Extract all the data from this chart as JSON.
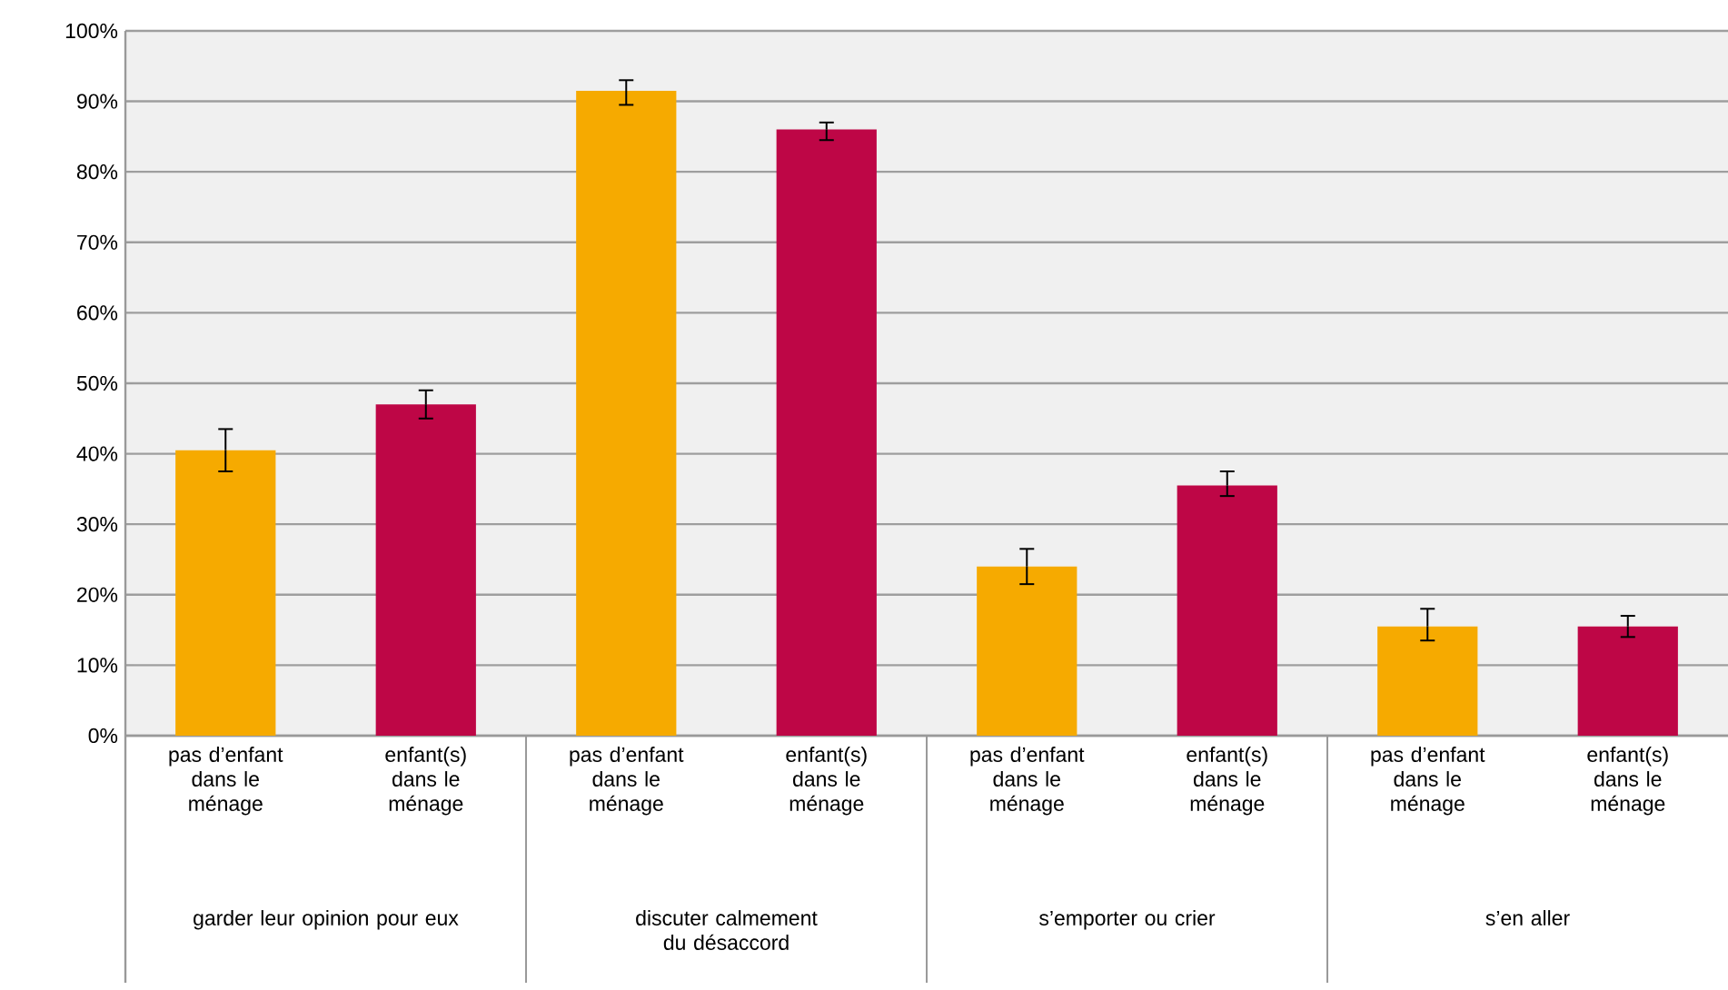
{
  "chart_data": {
    "type": "bar",
    "categories": [
      "pas d’enfant dans le ménage",
      "enfant(s) dans le ménage",
      "pas d’enfant dans le ménage",
      "enfant(s) dans le ménage",
      "pas d’enfant dans le ménage",
      "enfant(s) dans le ménage",
      "pas d’enfant dans le ménage",
      "enfant(s) dans le ménage"
    ],
    "values": [
      40.5,
      47,
      91.5,
      86,
      24,
      35.5,
      15.5,
      15.5
    ],
    "errors": [
      [
        37.5,
        43.5
      ],
      [
        45,
        49
      ],
      [
        89.5,
        93
      ],
      [
        84.5,
        87
      ],
      [
        21.5,
        26.5
      ],
      [
        34,
        37.5
      ],
      [
        13.5,
        18
      ],
      [
        14,
        17
      ]
    ],
    "colors": [
      "#f6aa00",
      "#be0646",
      "#f6aa00",
      "#be0646",
      "#f6aa00",
      "#be0646",
      "#f6aa00",
      "#be0646"
    ],
    "ylim": [
      0,
      100
    ],
    "yticks": [
      {
        "value": 0,
        "label": "0%"
      },
      {
        "value": 10,
        "label": "10%"
      },
      {
        "value": 20,
        "label": "20%"
      },
      {
        "value": 30,
        "label": "30%"
      },
      {
        "value": 40,
        "label": "40%"
      },
      {
        "value": 50,
        "label": "50%"
      },
      {
        "value": 60,
        "label": "60%"
      },
      {
        "value": 70,
        "label": "70%"
      },
      {
        "value": 80,
        "label": "80%"
      },
      {
        "value": 90,
        "label": "90%"
      },
      {
        "value": 100,
        "label": "100%"
      }
    ],
    "grid": "y",
    "annotations": [
      "garder leur opinion pour eux",
      "discuter calmement du désaccord",
      "s’emporter ou crier",
      "s’en aller"
    ]
  }
}
